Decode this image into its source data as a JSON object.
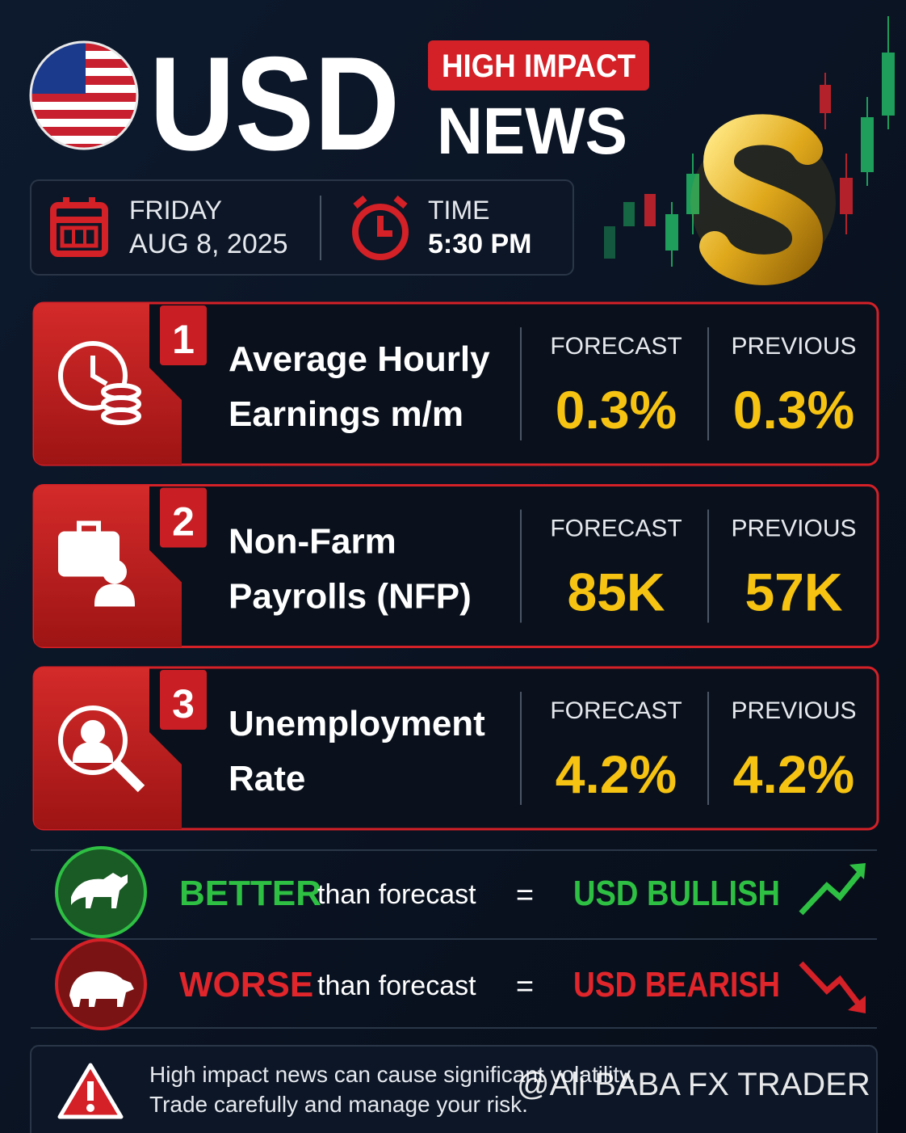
{
  "header": {
    "currency": "USD",
    "badge": "HIGH IMPACT",
    "subtitle": "NEWS"
  },
  "schedule": {
    "day": "FRIDAY",
    "date": "AUG 8, 2025",
    "time_label": "TIME",
    "time": "5:30 PM"
  },
  "events": [
    {
      "number": "1",
      "title_lines": [
        "Average Hourly",
        "Earnings m/m"
      ],
      "forecast_label": "FORECAST",
      "forecast": "0.3%",
      "previous_label": "PREVIOUS",
      "previous": "0.3%"
    },
    {
      "number": "2",
      "title_lines": [
        "Non-Farm",
        "Payrolls (NFP)"
      ],
      "forecast_label": "FORECAST",
      "forecast": "85K",
      "previous_label": "PREVIOUS",
      "previous": "57K"
    },
    {
      "number": "3",
      "title_lines": [
        "Unemployment",
        "Rate"
      ],
      "forecast_label": "FORECAST",
      "forecast": "4.2%",
      "previous_label": "PREVIOUS",
      "previous": "4.2%"
    }
  ],
  "outcomes": [
    {
      "result": "BETTER",
      "comparison": "than forecast",
      "equals": "=",
      "effect": "USD BULLISH"
    },
    {
      "result": "WORSE",
      "comparison": "than forecast",
      "equals": "=",
      "effect": "USD BEARISH"
    }
  ],
  "warning": {
    "lines": [
      "High impact news can cause significant volatility.",
      "Trade carefully and manage your risk."
    ]
  },
  "watermark": "@Ali BABA FX TRADER"
}
